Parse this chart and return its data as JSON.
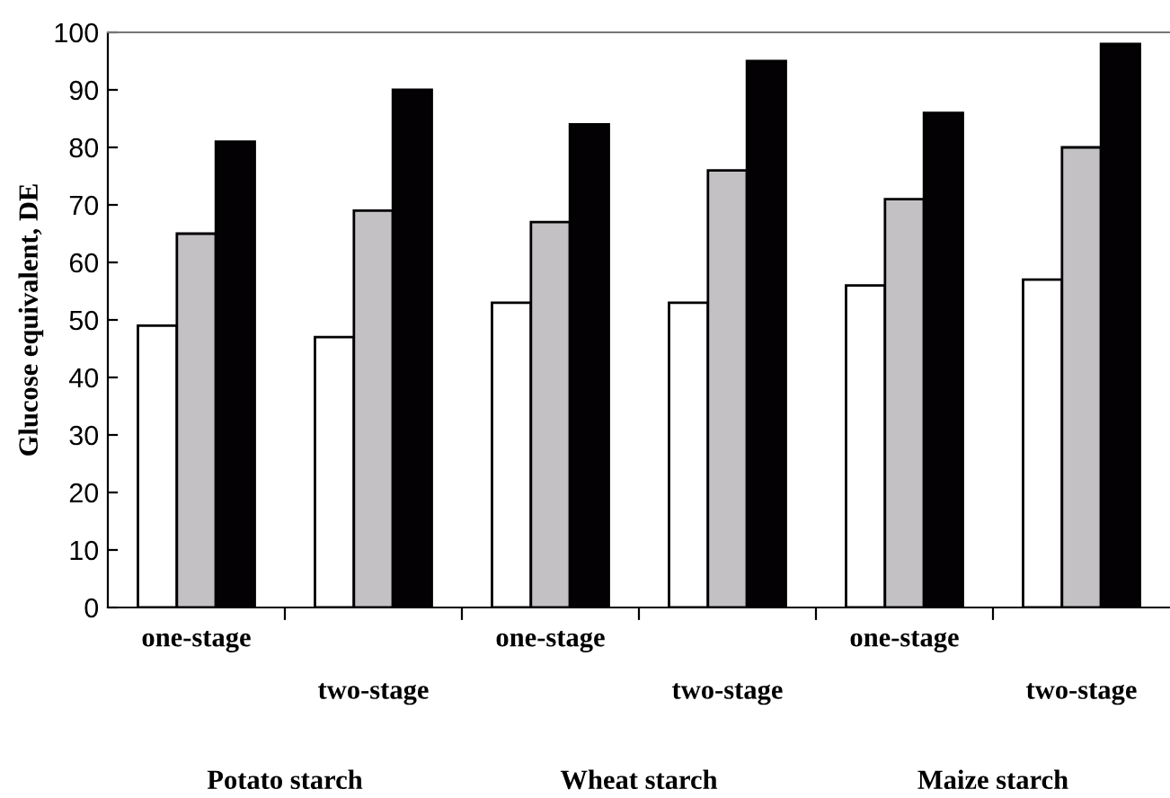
{
  "chart_data": {
    "type": "bar",
    "ylabel": "Glucose equivalent, DE",
    "categories": [
      "one-stage",
      "two-stage",
      "one-stage",
      "two-stage",
      "one-stage",
      "two-stage"
    ],
    "series": [
      {
        "color": "#ffffff",
        "values": [
          49,
          47,
          53,
          53,
          56,
          57
        ]
      },
      {
        "color": "#c3c1c4",
        "values": [
          65,
          69,
          67,
          76,
          71,
          80
        ]
      },
      {
        "color": "#030104",
        "values": [
          81,
          90,
          84,
          95,
          86,
          98
        ]
      }
    ],
    "annotations": [
      "Potato starch",
      "Wheat starch",
      "Maize starch"
    ],
    "ylim": [
      0,
      100
    ],
    "yticks": [
      0,
      10,
      20,
      30,
      40,
      50,
      60,
      70,
      80,
      90,
      100
    ],
    "grid": false,
    "legend": false
  }
}
